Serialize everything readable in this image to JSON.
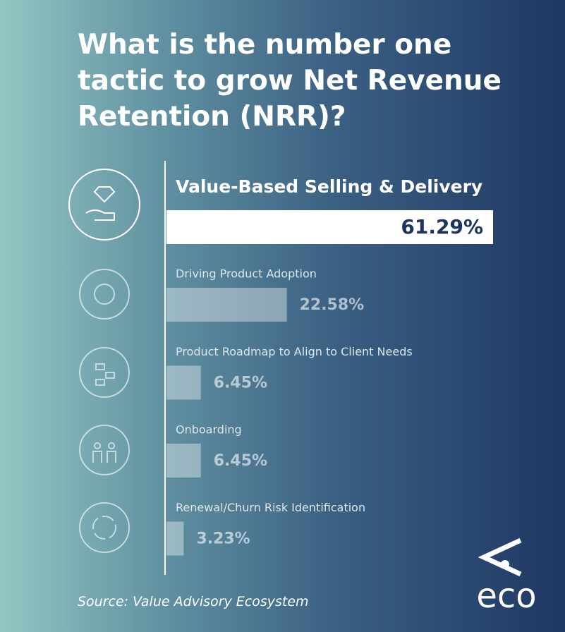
{
  "chart_data": {
    "type": "bar",
    "title": "What is the number one tactic to grow Net Revenue Retention (NRR)?",
    "categories": [
      "Value-Based Selling & Delivery",
      "Driving Product Adoption",
      "Product Roadmap to Align to Client Needs",
      "Onboarding",
      "Renewal/Churn Risk Identification"
    ],
    "values": [
      61.29,
      22.58,
      6.45,
      6.45,
      3.23
    ],
    "value_labels": [
      "61.29%",
      "22.58%",
      "6.45%",
      "6.45%",
      "3.23%"
    ],
    "source": "Source: Value Advisory Ecosystem",
    "logo": "eco"
  }
}
